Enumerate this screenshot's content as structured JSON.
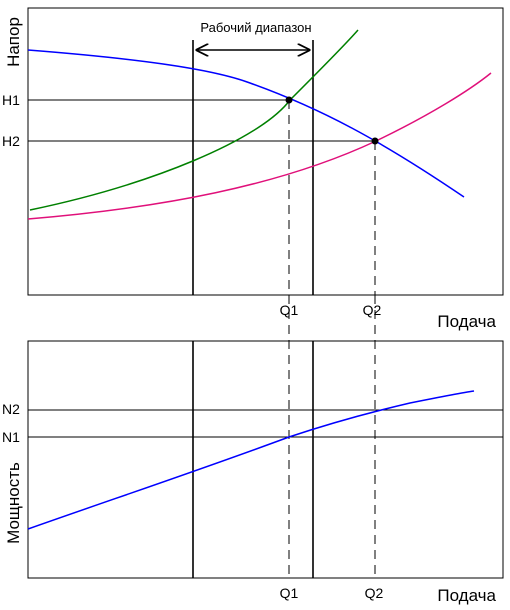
{
  "top_plot": {
    "y_axis_label": "Напор",
    "x_axis_label": "Подача",
    "range_label": "Рабочий диапазон",
    "h_ticks": [
      "H1",
      "H2"
    ],
    "q_ticks": [
      "Q1",
      "Q2"
    ],
    "curves": [
      {
        "name": "pump-head-curve",
        "color": "#0000ff"
      },
      {
        "name": "system-curve-1",
        "color": "#008000"
      },
      {
        "name": "system-curve-2",
        "color": "#e0107a"
      }
    ]
  },
  "bottom_plot": {
    "y_axis_label": "Мощность",
    "x_axis_label": "Подача",
    "n_ticks": [
      "N2",
      "N1"
    ],
    "q_ticks": [
      "Q1",
      "Q2"
    ],
    "curves": [
      {
        "name": "power-curve",
        "color": "#0000ff"
      }
    ]
  }
}
